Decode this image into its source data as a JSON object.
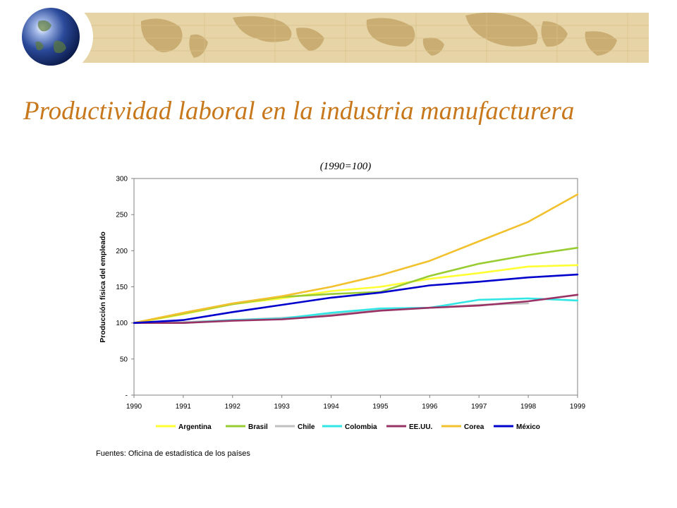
{
  "slide": {
    "title": "Productividad laboral en la industria manufacturera",
    "source": "Fuentes: Oficina de estadística de los países"
  },
  "theme": {
    "title_color": "#c8781c",
    "banner_color": "#e6d4a6",
    "map_color": "#c9ad72",
    "globe_color": "#2b4a9a"
  },
  "chart_data": {
    "type": "line",
    "subtitle": "(1990=100)",
    "ylabel": "Producción física del empleado",
    "xlabel": "",
    "categories": [
      "1990",
      "1991",
      "1992",
      "1993",
      "1994",
      "1995",
      "1996",
      "1997",
      "1998",
      "1999"
    ],
    "ylim": [
      0,
      300
    ],
    "yticks": [
      0,
      50,
      100,
      150,
      200,
      250,
      300
    ],
    "ytick_labels": [
      "-",
      "50",
      "100",
      "150",
      "200",
      "250",
      "300"
    ],
    "grid": false,
    "legend_position": "bottom",
    "series": [
      {
        "name": "Argentina",
        "color": "#ffff33",
        "values": [
          100,
          112,
          126,
          134,
          144,
          150,
          161,
          169,
          178,
          180
        ]
      },
      {
        "name": "Brasil",
        "color": "#99cc33",
        "values": [
          100,
          113,
          126,
          136,
          140,
          143,
          165,
          182,
          194,
          204
        ]
      },
      {
        "name": "Chile",
        "color": "#c0c0c0",
        "values": [
          100,
          101,
          104,
          107,
          112,
          118,
          121,
          125,
          127,
          null
        ]
      },
      {
        "name": "Colombia",
        "color": "#33e6e6",
        "values": [
          100,
          100,
          104,
          106,
          114,
          120,
          121,
          132,
          134,
          131
        ]
      },
      {
        "name": "EE.UU.",
        "color": "#993366",
        "values": [
          100,
          100,
          103,
          105,
          110,
          117,
          121,
          124,
          130,
          139
        ]
      },
      {
        "name": "Corea",
        "color": "#f2c12e",
        "values": [
          100,
          114,
          127,
          137,
          150,
          166,
          186,
          213,
          240,
          278
        ]
      },
      {
        "name": "México",
        "color": "#0000cc",
        "values": [
          100,
          104,
          115,
          125,
          135,
          142,
          152,
          157,
          163,
          167
        ]
      }
    ]
  }
}
